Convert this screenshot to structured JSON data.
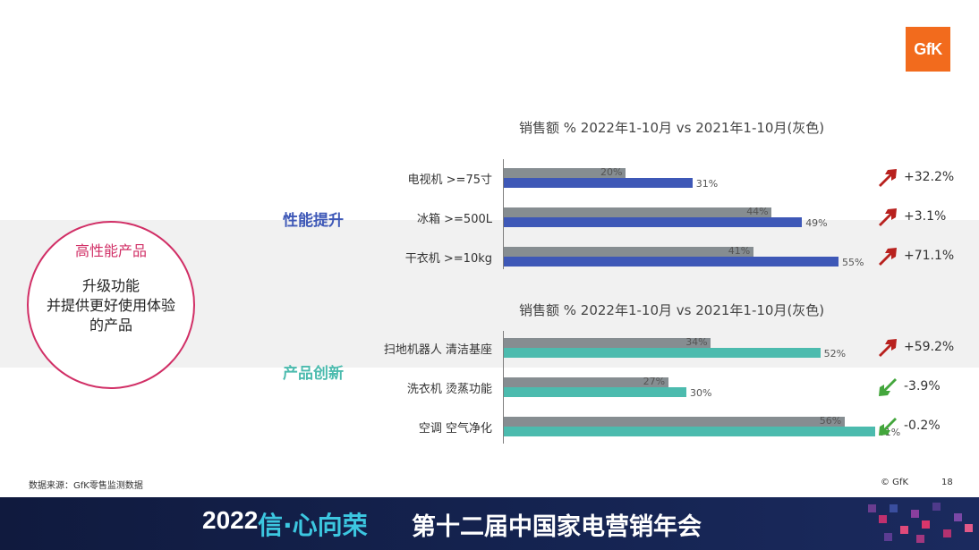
{
  "logo": {
    "text": "GfK",
    "color": "#f26b1d"
  },
  "circle": {
    "title": "高性能产品",
    "lines": [
      "升级功能",
      "并提供更好使用体验",
      "的产品"
    ]
  },
  "groups": [
    {
      "label": "性能提升",
      "color": "#3e58b7",
      "section_title": "销售额 %  2022年1-10月 vs 2021年1-10月(灰色)"
    },
    {
      "label": "产品创新",
      "color": "#4cbbae",
      "section_title": "销售额 %  2022年1-10月 vs 2021年1-10月(灰色)"
    }
  ],
  "chart_data": [
    {
      "type": "bar",
      "orientation": "horizontal",
      "title": "销售额 %  2022年1-10月 vs 2021年1-10月(灰色)",
      "categories": [
        "电视机 >=75寸",
        "冰箱 >=500L",
        "干衣机 >=10kg"
      ],
      "series": [
        {
          "name": "2021年1-10月",
          "color": "#868d91",
          "values": [
            20,
            44,
            41
          ],
          "labels": [
            "20%",
            "44%",
            "41%"
          ]
        },
        {
          "name": "2022年1-10月",
          "color": "#3e58b7",
          "values": [
            31,
            49,
            55
          ],
          "labels": [
            "31%",
            "49%",
            "55%"
          ]
        }
      ],
      "changes": [
        {
          "text": "+32.2%",
          "direction": "up",
          "arrow_color": "#b8211e"
        },
        {
          "text": "+3.1%",
          "direction": "up",
          "arrow_color": "#b8211e"
        },
        {
          "text": "+71.1%",
          "direction": "up",
          "arrow_color": "#b8211e"
        }
      ]
    },
    {
      "type": "bar",
      "orientation": "horizontal",
      "title": "销售额 %  2022年1-10月 vs 2021年1-10月(灰色)",
      "categories": [
        "扫地机器人 清洁基座",
        "洗衣机 烫蒸功能",
        "空调 空气净化"
      ],
      "series": [
        {
          "name": "2021年1-10月",
          "color": "#868d91",
          "values": [
            34,
            27,
            56
          ],
          "labels": [
            "34%",
            "27%",
            "56%"
          ]
        },
        {
          "name": "2022年1-10月",
          "color": "#4cbbae",
          "values": [
            52,
            30,
            61
          ],
          "labels": [
            "52%",
            "30%",
            "61%"
          ]
        }
      ],
      "changes": [
        {
          "text": "+59.2%",
          "direction": "up",
          "arrow_color": "#b8211e"
        },
        {
          "text": "-3.9%",
          "direction": "down",
          "arrow_color": "#43a63c"
        },
        {
          "text": "-0.2%",
          "direction": "down",
          "arrow_color": "#43a63c"
        }
      ]
    }
  ],
  "source": "数据来源：GfK零售监测数据",
  "copyright": "© GfK",
  "page_number": "18",
  "footer": {
    "year": "2022",
    "slogan": "信·心向荣",
    "title": "第十二届中国家电营销年会"
  }
}
